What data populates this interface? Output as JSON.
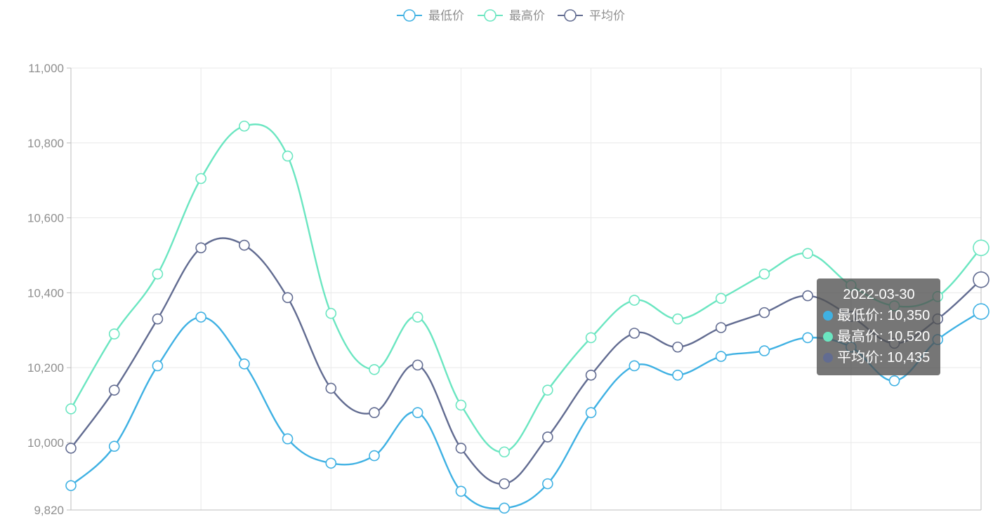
{
  "chart_data": {
    "type": "line",
    "smooth": true,
    "legend": {
      "position": "top-center",
      "items": [
        "最低价",
        "最高价",
        "平均价"
      ]
    },
    "colors": [
      "#3fb1e3",
      "#6be6c1",
      "#626c91"
    ],
    "x_ticks_visible": false,
    "grid": true,
    "y_range": [
      9820,
      11000
    ],
    "y_ticks": [
      9820,
      10000,
      10200,
      10400,
      10600,
      10800,
      11000
    ],
    "y_tick_labels": [
      "9,820",
      "10,000",
      "10,200",
      "10,400",
      "10,600",
      "10,800",
      "11,000"
    ],
    "series": [
      {
        "name": "最低价",
        "values": [
          9885,
          9990,
          10205,
          10335,
          10210,
          10010,
          9945,
          9965,
          10080,
          9870,
          9825,
          9890,
          10080,
          10205,
          10180,
          10230,
          10245,
          10280,
          10255,
          10165,
          10275,
          10350
        ]
      },
      {
        "name": "最高价",
        "values": [
          10090,
          10290,
          10450,
          10705,
          10845,
          10765,
          10345,
          10195,
          10335,
          10100,
          9975,
          10140,
          10280,
          10380,
          10330,
          10385,
          10450,
          10505,
          10420,
          10365,
          10390,
          10520
        ]
      },
      {
        "name": "平均价",
        "values": [
          9985,
          10140,
          10330,
          10520,
          10527,
          10387,
          10145,
          10080,
          10207,
          9985,
          9890,
          10015,
          10180,
          10292,
          10255,
          10307,
          10347,
          10392,
          10337,
          10265,
          10330,
          10435
        ]
      }
    ],
    "tooltip": {
      "title": "2022-03-30",
      "rows": [
        "最低价: 10,350",
        "最高价: 10,520",
        "平均价: 10,435"
      ]
    }
  }
}
